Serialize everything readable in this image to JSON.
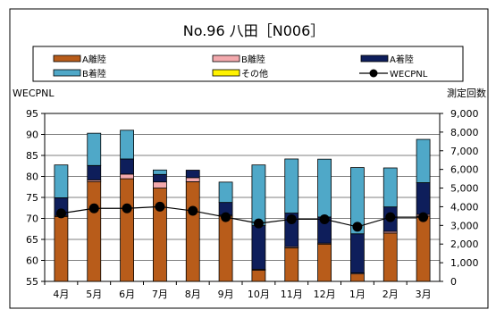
{
  "chart_data": {
    "type": "bar",
    "title": "No.96 八田［N006］",
    "ylabel_left": "WECPNL",
    "ylabel_right": "測定回数",
    "categories": [
      "4月",
      "5月",
      "6月",
      "7月",
      "8月",
      "9月",
      "10月",
      "11月",
      "12月",
      "1月",
      "2月",
      "3月"
    ],
    "ylim_left": [
      55,
      95
    ],
    "yticks_left": [
      "55",
      "60",
      "65",
      "70",
      "75",
      "80",
      "85",
      "90",
      "95"
    ],
    "ylim_right": [
      0,
      9000
    ],
    "yticks_right": [
      "0",
      "1,000",
      "2,000",
      "3,000",
      "4,000",
      "5,000",
      "6,000",
      "7,000",
      "8,000",
      "9,000"
    ],
    "legend_placement": "top",
    "series": [
      {
        "name": "A離陸",
        "kind": "bar",
        "color": "#B85C1A",
        "values": [
          3480,
          5350,
          5500,
          5000,
          5340,
          3500,
          600,
          1800,
          2000,
          400,
          2590,
          3500
        ]
      },
      {
        "name": "B離陸",
        "kind": "bar",
        "color": "#F3A9AD",
        "values": [
          50,
          90,
          250,
          330,
          220,
          50,
          50,
          60,
          50,
          50,
          90,
          90
        ]
      },
      {
        "name": "A着陸",
        "kind": "bar",
        "color": "#0E1E5B",
        "values": [
          950,
          770,
          810,
          400,
          400,
          680,
          2340,
          1800,
          1400,
          2100,
          1310,
          1700
        ]
      },
      {
        "name": "B着陸",
        "kind": "bar",
        "color": "#4FA8C8",
        "values": [
          1760,
          1730,
          1540,
          240,
          0,
          1090,
          3250,
          2900,
          3100,
          3550,
          2090,
          2320
        ]
      },
      {
        "name": "その他",
        "kind": "bar",
        "color": "#FFF200",
        "values": [
          0,
          0,
          0,
          0,
          0,
          0,
          0,
          0,
          0,
          0,
          0,
          0
        ]
      },
      {
        "name": "WECPNL",
        "kind": "line",
        "color": "#000000",
        "values": [
          71.2,
          72.4,
          72.4,
          72.8,
          71.8,
          70.3,
          68.8,
          69.8,
          69.8,
          68.0,
          70.3,
          70.3
        ]
      }
    ]
  }
}
